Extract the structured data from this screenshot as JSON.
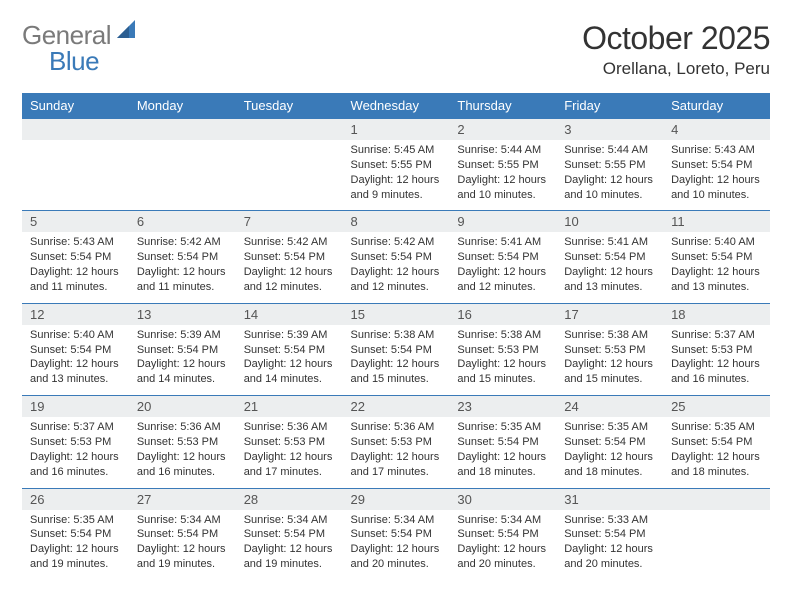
{
  "brand": {
    "part1": "General",
    "part2": "Blue"
  },
  "title": "October 2025",
  "location": "Orellana, Loreto, Peru",
  "style": {
    "accent": "#3a7ab8",
    "header_bg": "#3a7ab8",
    "header_fg": "#ffffff",
    "daynum_bg": "#eceeef",
    "body_bg": "#ffffff",
    "text_color": "#333333",
    "logo_gray": "#7a7a7a",
    "font_family": "Arial, Helvetica, sans-serif",
    "title_fontsize": 32,
    "location_fontsize": 17,
    "weekday_fontsize": 13,
    "cell_fontsize": 11,
    "columns": 7
  },
  "weekdays": [
    "Sunday",
    "Monday",
    "Tuesday",
    "Wednesday",
    "Thursday",
    "Friday",
    "Saturday"
  ],
  "weeks": [
    {
      "nums": [
        "",
        "",
        "",
        "1",
        "2",
        "3",
        "4"
      ],
      "info": [
        "",
        "",
        "",
        "Sunrise: 5:45 AM\nSunset: 5:55 PM\nDaylight: 12 hours and 9 minutes.",
        "Sunrise: 5:44 AM\nSunset: 5:55 PM\nDaylight: 12 hours and 10 minutes.",
        "Sunrise: 5:44 AM\nSunset: 5:55 PM\nDaylight: 12 hours and 10 minutes.",
        "Sunrise: 5:43 AM\nSunset: 5:54 PM\nDaylight: 12 hours and 10 minutes."
      ]
    },
    {
      "nums": [
        "5",
        "6",
        "7",
        "8",
        "9",
        "10",
        "11"
      ],
      "info": [
        "Sunrise: 5:43 AM\nSunset: 5:54 PM\nDaylight: 12 hours and 11 minutes.",
        "Sunrise: 5:42 AM\nSunset: 5:54 PM\nDaylight: 12 hours and 11 minutes.",
        "Sunrise: 5:42 AM\nSunset: 5:54 PM\nDaylight: 12 hours and 12 minutes.",
        "Sunrise: 5:42 AM\nSunset: 5:54 PM\nDaylight: 12 hours and 12 minutes.",
        "Sunrise: 5:41 AM\nSunset: 5:54 PM\nDaylight: 12 hours and 12 minutes.",
        "Sunrise: 5:41 AM\nSunset: 5:54 PM\nDaylight: 12 hours and 13 minutes.",
        "Sunrise: 5:40 AM\nSunset: 5:54 PM\nDaylight: 12 hours and 13 minutes."
      ]
    },
    {
      "nums": [
        "12",
        "13",
        "14",
        "15",
        "16",
        "17",
        "18"
      ],
      "info": [
        "Sunrise: 5:40 AM\nSunset: 5:54 PM\nDaylight: 12 hours and 13 minutes.",
        "Sunrise: 5:39 AM\nSunset: 5:54 PM\nDaylight: 12 hours and 14 minutes.",
        "Sunrise: 5:39 AM\nSunset: 5:54 PM\nDaylight: 12 hours and 14 minutes.",
        "Sunrise: 5:38 AM\nSunset: 5:54 PM\nDaylight: 12 hours and 15 minutes.",
        "Sunrise: 5:38 AM\nSunset: 5:53 PM\nDaylight: 12 hours and 15 minutes.",
        "Sunrise: 5:38 AM\nSunset: 5:53 PM\nDaylight: 12 hours and 15 minutes.",
        "Sunrise: 5:37 AM\nSunset: 5:53 PM\nDaylight: 12 hours and 16 minutes."
      ]
    },
    {
      "nums": [
        "19",
        "20",
        "21",
        "22",
        "23",
        "24",
        "25"
      ],
      "info": [
        "Sunrise: 5:37 AM\nSunset: 5:53 PM\nDaylight: 12 hours and 16 minutes.",
        "Sunrise: 5:36 AM\nSunset: 5:53 PM\nDaylight: 12 hours and 16 minutes.",
        "Sunrise: 5:36 AM\nSunset: 5:53 PM\nDaylight: 12 hours and 17 minutes.",
        "Sunrise: 5:36 AM\nSunset: 5:53 PM\nDaylight: 12 hours and 17 minutes.",
        "Sunrise: 5:35 AM\nSunset: 5:54 PM\nDaylight: 12 hours and 18 minutes.",
        "Sunrise: 5:35 AM\nSunset: 5:54 PM\nDaylight: 12 hours and 18 minutes.",
        "Sunrise: 5:35 AM\nSunset: 5:54 PM\nDaylight: 12 hours and 18 minutes."
      ]
    },
    {
      "nums": [
        "26",
        "27",
        "28",
        "29",
        "30",
        "31",
        ""
      ],
      "info": [
        "Sunrise: 5:35 AM\nSunset: 5:54 PM\nDaylight: 12 hours and 19 minutes.",
        "Sunrise: 5:34 AM\nSunset: 5:54 PM\nDaylight: 12 hours and 19 minutes.",
        "Sunrise: 5:34 AM\nSunset: 5:54 PM\nDaylight: 12 hours and 19 minutes.",
        "Sunrise: 5:34 AM\nSunset: 5:54 PM\nDaylight: 12 hours and 20 minutes.",
        "Sunrise: 5:34 AM\nSunset: 5:54 PM\nDaylight: 12 hours and 20 minutes.",
        "Sunrise: 5:33 AM\nSunset: 5:54 PM\nDaylight: 12 hours and 20 minutes.",
        ""
      ]
    }
  ]
}
